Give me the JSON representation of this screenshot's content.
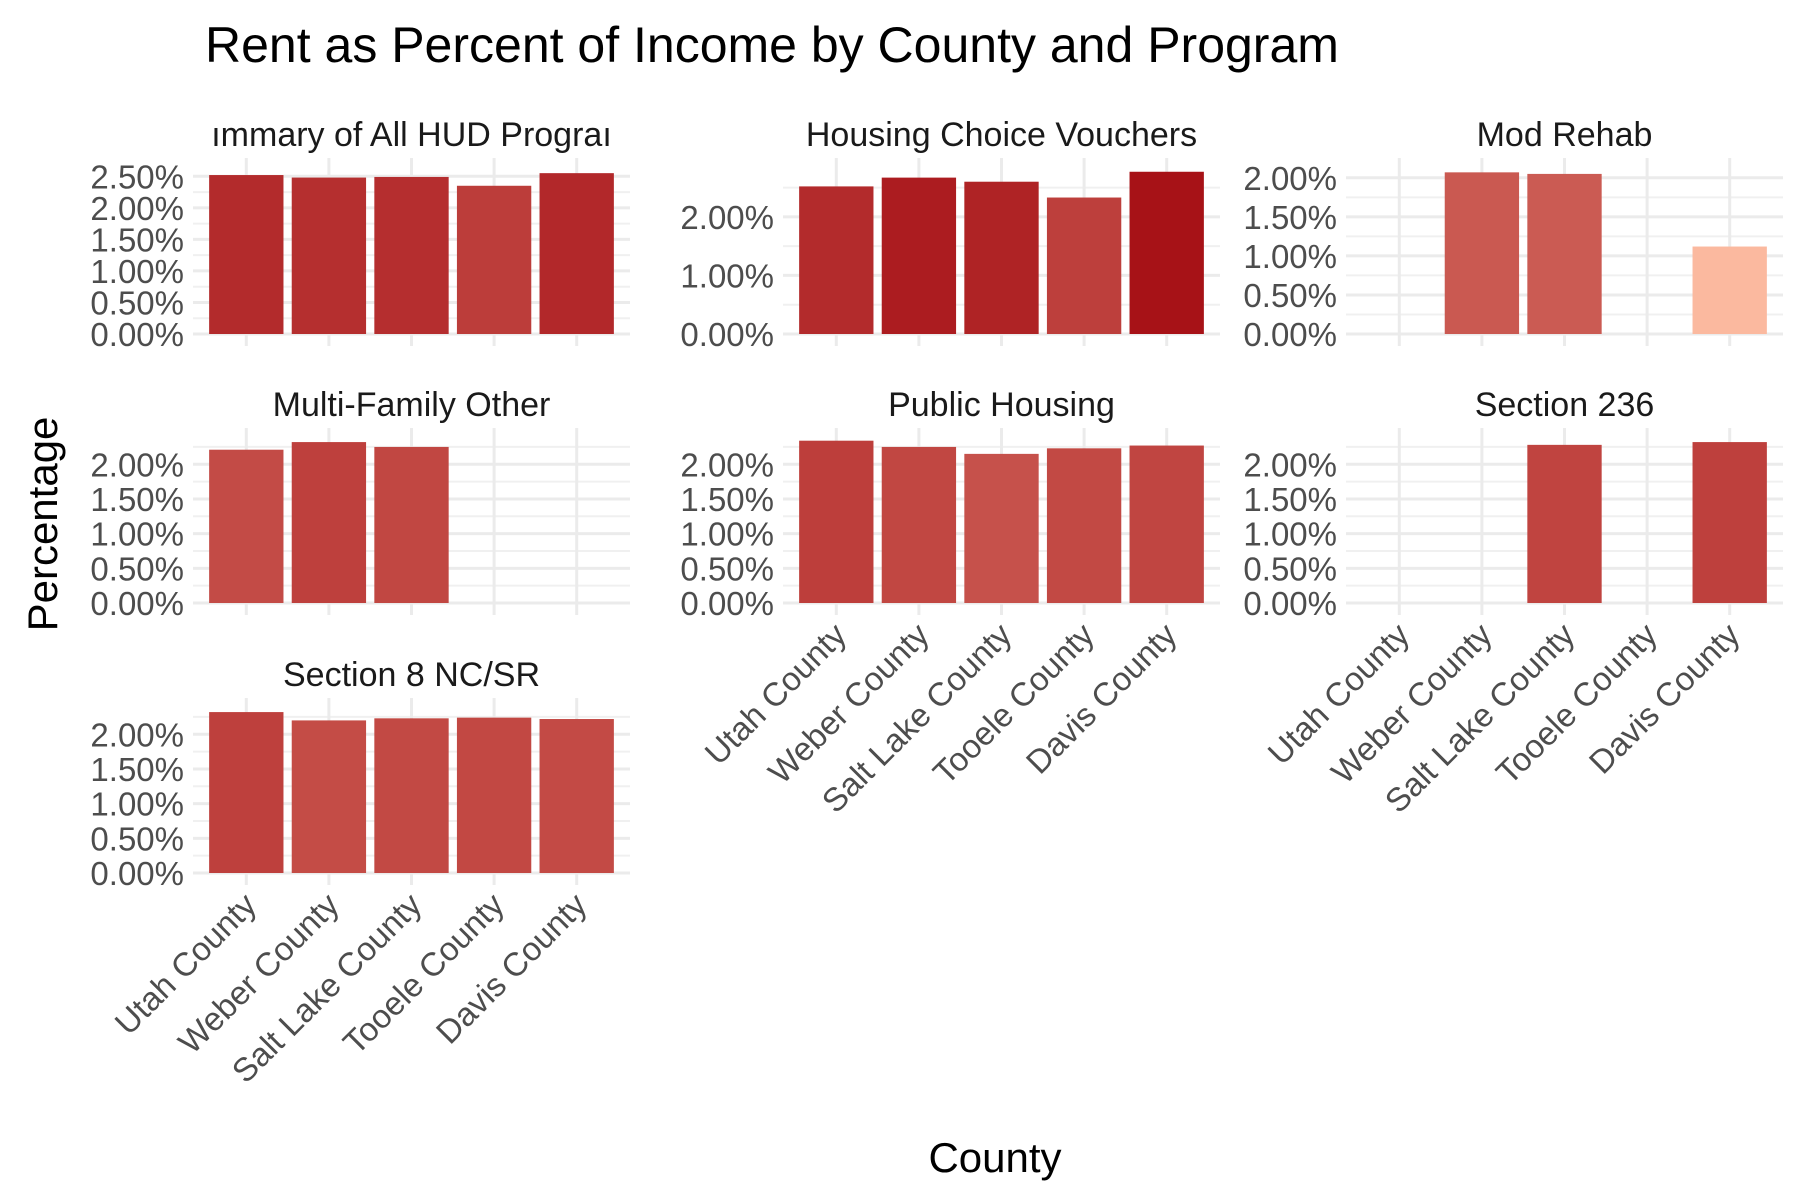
{
  "chart_data": {
    "type": "bar",
    "title": "Rent as Percent of Income by County and Program",
    "xlabel": "County",
    "ylabel": "Percentage",
    "categories": [
      "Utah County",
      "Weber County",
      "Salt Lake County",
      "Tooele County",
      "Davis County"
    ],
    "layout": "facet grid 3 rows x 3 columns, free y scales",
    "grid": true,
    "fill_scale": {
      "low": "#fcbba1",
      "high": "#a50f15"
    },
    "panels": [
      {
        "name": "Summary of All HUD Programs",
        "strip_label": "ımmary of All HUD Prograı",
        "values": [
          2.52,
          2.48,
          2.49,
          2.35,
          2.55
        ],
        "ylim": [
          0,
          2.6
        ],
        "yticks": [
          0,
          0.5,
          1.0,
          1.5,
          2.0,
          2.5
        ],
        "ytick_labels": [
          "0.00%",
          "0.50%",
          "1.00%",
          "1.50%",
          "2.00%",
          "2.50%"
        ]
      },
      {
        "name": "Housing Choice Vouchers",
        "strip_label": "Housing Choice Vouchers",
        "values": [
          2.52,
          2.67,
          2.6,
          2.33,
          2.77
        ],
        "ylim": [
          0,
          2.8
        ],
        "yticks": [
          0,
          1.0,
          2.0
        ],
        "ytick_labels": [
          "0.00%",
          "1.00%",
          "2.00%"
        ]
      },
      {
        "name": "Mod Rehab",
        "strip_label": "Mod Rehab",
        "values": [
          null,
          2.07,
          2.05,
          null,
          1.12
        ],
        "ylim": [
          0,
          2.1
        ],
        "yticks": [
          0,
          0.5,
          1.0,
          1.5,
          2.0
        ],
        "ytick_labels": [
          "0.00%",
          "0.50%",
          "1.00%",
          "1.50%",
          "2.00%"
        ]
      },
      {
        "name": "Multi-Family Other",
        "strip_label": "Multi-Family Other",
        "values": [
          2.21,
          2.32,
          2.25,
          null,
          null
        ],
        "ylim": [
          0,
          2.35
        ],
        "yticks": [
          0,
          0.5,
          1.0,
          1.5,
          2.0
        ],
        "ytick_labels": [
          "0.00%",
          "0.50%",
          "1.00%",
          "1.50%",
          "2.00%"
        ]
      },
      {
        "name": "Public Housing",
        "strip_label": "Public Housing",
        "values": [
          2.34,
          2.25,
          2.15,
          2.23,
          2.27
        ],
        "ylim": [
          0,
          2.35
        ],
        "yticks": [
          0,
          0.5,
          1.0,
          1.5,
          2.0
        ],
        "ytick_labels": [
          "0.00%",
          "0.50%",
          "1.00%",
          "1.50%",
          "2.00%"
        ]
      },
      {
        "name": "Section 236",
        "strip_label": "Section 236",
        "values": [
          null,
          null,
          2.28,
          null,
          2.32
        ],
        "ylim": [
          0,
          2.35
        ],
        "yticks": [
          0,
          0.5,
          1.0,
          1.5,
          2.0
        ],
        "ytick_labels": [
          "0.00%",
          "0.50%",
          "1.00%",
          "1.50%",
          "2.00%"
        ]
      },
      {
        "name": "Section 8 NC/SR",
        "strip_label": "Section 8 NC/SR",
        "values": [
          2.32,
          2.2,
          2.23,
          2.24,
          2.22
        ],
        "ylim": [
          0,
          2.35
        ],
        "yticks": [
          0,
          0.5,
          1.0,
          1.5,
          2.0
        ],
        "ytick_labels": [
          "0.00%",
          "0.50%",
          "1.00%",
          "1.50%",
          "2.00%"
        ]
      }
    ]
  }
}
